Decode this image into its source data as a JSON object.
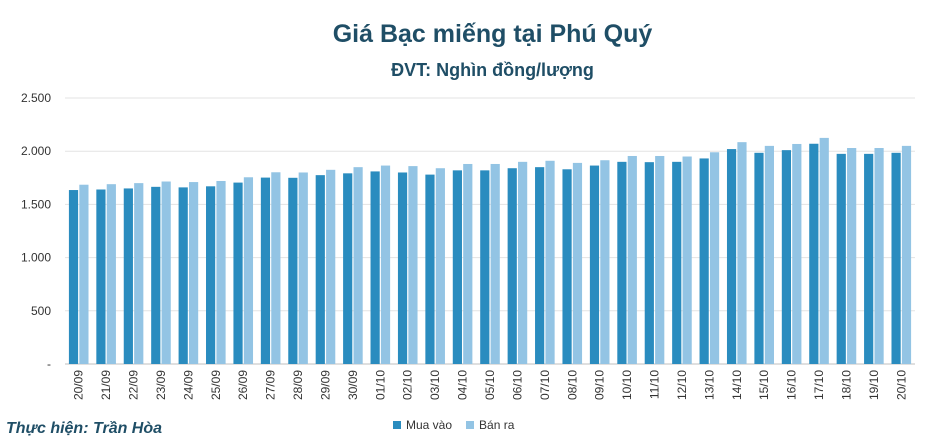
{
  "chart_data": {
    "type": "bar",
    "title": "Giá Bạc miếng tại Phú Quý",
    "subtitle": "ĐVT: Nghìn đồng/lượng",
    "ylim": [
      0,
      2500
    ],
    "yticks": [
      "-",
      "500",
      "1.000",
      "1.500",
      "2.000",
      "2.500"
    ],
    "grid": true,
    "legend": "bottom",
    "categories": [
      "20/09",
      "21/09",
      "22/09",
      "23/09",
      "24/09",
      "25/09",
      "26/09",
      "27/09",
      "28/09",
      "29/09",
      "30/09",
      "01/10",
      "02/10",
      "03/10",
      "04/10",
      "05/10",
      "06/10",
      "07/10",
      "08/10",
      "09/10",
      "10/10",
      "11/10",
      "12/10",
      "13/10",
      "14/10",
      "15/10",
      "16/10",
      "17/10",
      "18/10",
      "19/10",
      "20/10"
    ],
    "series": [
      {
        "name": "Mua vào",
        "color": "#2a8cbf",
        "values": [
          1635,
          1640,
          1650,
          1665,
          1660,
          1670,
          1705,
          1752,
          1750,
          1775,
          1792,
          1810,
          1800,
          1780,
          1820,
          1820,
          1840,
          1850,
          1830,
          1865,
          1900,
          1897,
          1900,
          1932,
          2020,
          1985,
          2010,
          2070,
          1975,
          1975,
          1985
        ]
      },
      {
        "name": "Bán ra",
        "color": "#93c4e4",
        "values": [
          1685,
          1690,
          1700,
          1715,
          1710,
          1720,
          1755,
          1802,
          1800,
          1825,
          1850,
          1865,
          1860,
          1840,
          1880,
          1880,
          1900,
          1910,
          1890,
          1915,
          1955,
          1955,
          1950,
          1990,
          2085,
          2050,
          2068,
          2125,
          2030,
          2030,
          2050
        ]
      }
    ]
  },
  "credit": "Thực hiện: Trần Hòa"
}
